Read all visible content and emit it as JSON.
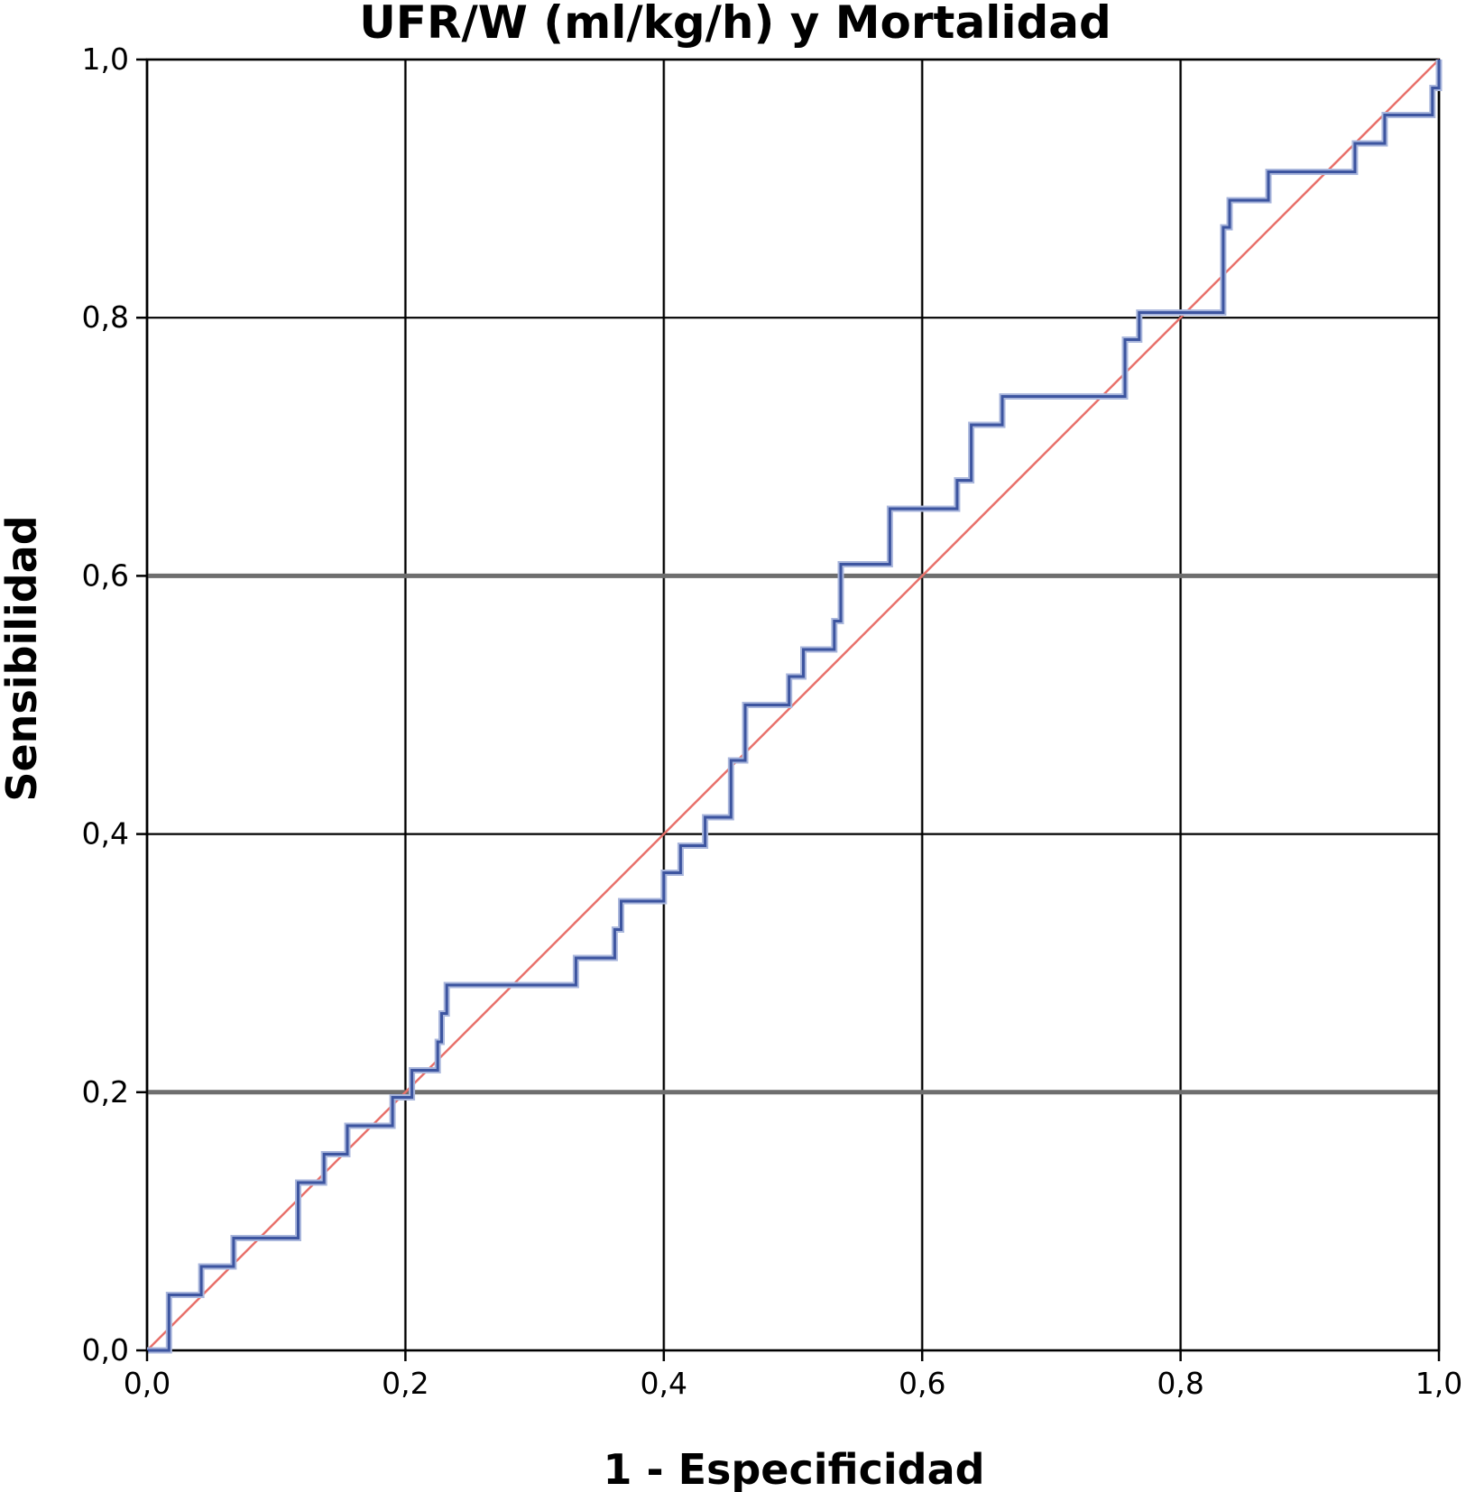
{
  "chart_data": {
    "type": "line",
    "title": "UFR/W (ml/kg/h) y Mortalidad",
    "xlabel": "1 - Especificidad",
    "ylabel": "Sensibilidad",
    "xlim": [
      0,
      1
    ],
    "ylim": [
      0,
      1
    ],
    "x_ticks": [
      "0,0",
      "0,2",
      "0,4",
      "0,6",
      "0,8",
      "1,0"
    ],
    "y_ticks": [
      "0,0",
      "0,2",
      "0,4",
      "0,6",
      "0,8",
      "1,0"
    ],
    "grid": true,
    "legend": "none",
    "colors": {
      "roc": "#3d55a0",
      "roc_shadow": "#a9b6dc",
      "reference": "#e8706a",
      "grid_dark": "#000000",
      "grid_gray": "#6e6e6e"
    },
    "series": [
      {
        "type": "step",
        "x": [
          0.0,
          0.017,
          0.017,
          0.042,
          0.042,
          0.067,
          0.067,
          0.117,
          0.117,
          0.137,
          0.137,
          0.155,
          0.155,
          0.19,
          0.19,
          0.205,
          0.205,
          0.225,
          0.225,
          0.228,
          0.228,
          0.232,
          0.232,
          0.332,
          0.332,
          0.362,
          0.362,
          0.367,
          0.367,
          0.4,
          0.4,
          0.413,
          0.413,
          0.432,
          0.432,
          0.452,
          0.452,
          0.463,
          0.463,
          0.497,
          0.497,
          0.508,
          0.508,
          0.532,
          0.532,
          0.537,
          0.537,
          0.575,
          0.575,
          0.627,
          0.627,
          0.638,
          0.638,
          0.662,
          0.662,
          0.757,
          0.757,
          0.768,
          0.768,
          0.833,
          0.833,
          0.838,
          0.838,
          0.868,
          0.868,
          0.935,
          0.935,
          0.958,
          0.958,
          0.995,
          0.995,
          1.0,
          1.0
        ],
        "y": [
          0.0,
          0.0,
          0.043,
          0.043,
          0.065,
          0.065,
          0.087,
          0.087,
          0.13,
          0.13,
          0.152,
          0.152,
          0.174,
          0.174,
          0.196,
          0.196,
          0.217,
          0.217,
          0.239,
          0.239,
          0.261,
          0.261,
          0.283,
          0.283,
          0.304,
          0.304,
          0.326,
          0.326,
          0.348,
          0.348,
          0.37,
          0.37,
          0.391,
          0.391,
          0.413,
          0.413,
          0.457,
          0.457,
          0.5,
          0.5,
          0.522,
          0.522,
          0.543,
          0.543,
          0.565,
          0.565,
          0.609,
          0.609,
          0.652,
          0.652,
          0.674,
          0.674,
          0.717,
          0.717,
          0.739,
          0.739,
          0.783,
          0.783,
          0.804,
          0.804,
          0.87,
          0.87,
          0.891,
          0.891,
          0.913,
          0.913,
          0.935,
          0.935,
          0.957,
          0.957,
          0.978,
          0.978,
          1.0
        ]
      },
      {
        "type": "reference",
        "x": [
          0,
          1
        ],
        "y": [
          0,
          1
        ]
      }
    ]
  }
}
